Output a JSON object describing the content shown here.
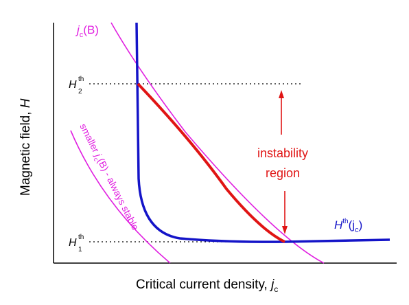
{
  "labels": {
    "y_axis_main": "Magnetic field, ",
    "y_axis_var": "H",
    "x_axis_main": "Critical current density, ",
    "x_axis_var": "j",
    "x_axis_sub": "c",
    "h2_main": "H",
    "h2_sup": "th",
    "h2_sub": "2",
    "h1_main": "H",
    "h1_sup": "th",
    "h1_sub": "1",
    "jcB_j": "j",
    "jcB_sub": "c",
    "jcB_rest": "(B)",
    "smaller_pre": "smaller ",
    "smaller_j": "j",
    "smaller_sub": "c",
    "smaller_post": "(B) - always stable",
    "instability_line1": "instability",
    "instability_line2": "region",
    "hth_H": "H",
    "hth_sup": "th",
    "hth_paren": "(j",
    "hth_sub": "c",
    "hth_close": ")"
  },
  "colors": {
    "axis": "#000000",
    "threshold_curve": "#1414c8",
    "jc_curves": "#e01ee0",
    "instability": "#e01414",
    "label_text": "#000000"
  }
}
